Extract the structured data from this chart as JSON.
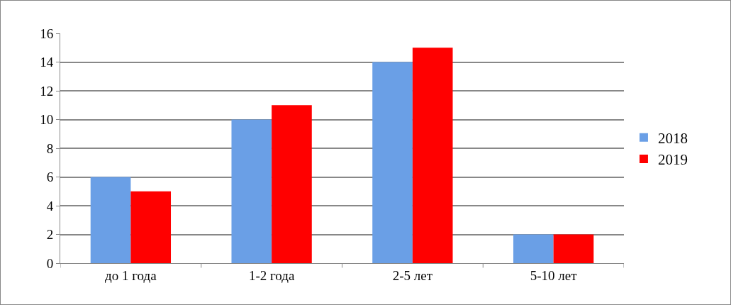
{
  "chart_data": {
    "type": "bar",
    "categories": [
      "до 1 года",
      "1-2 года",
      "2-5 лет",
      "5-10 лет"
    ],
    "series": [
      {
        "name": "2018",
        "color": "#6a9fe6",
        "values": [
          6,
          10,
          14,
          2
        ]
      },
      {
        "name": "2019",
        "color": "#ff0000",
        "values": [
          5,
          11,
          15,
          2
        ]
      }
    ],
    "ylim": [
      0,
      16
    ],
    "yticks": [
      0,
      2,
      4,
      6,
      8,
      10,
      12,
      14,
      16
    ],
    "grid": "y",
    "legend": "right"
  }
}
